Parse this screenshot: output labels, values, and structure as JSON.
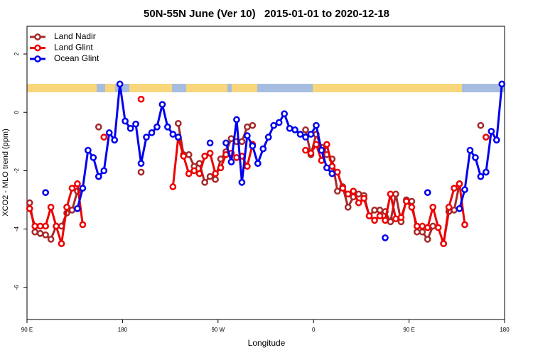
{
  "chart_data": {
    "type": "line",
    "title": "50N-55N June (Ver 10)   2015-01-01 to 2020-12-18",
    "x_label": "Longitude",
    "y_label": "XCO2 - MLO trend (ppm)",
    "x": [
      92.5,
      97.5,
      102.5,
      107.5,
      112.5,
      117.5,
      122.5,
      127.5,
      132.5,
      137.5,
      142.5,
      147.5,
      152.5,
      157.5,
      162.5,
      167.5,
      172.5,
      177.5,
      182.5,
      187.5,
      192.5,
      197.5,
      202.5,
      207.5,
      212.5,
      217.5,
      222.5,
      227.5,
      232.5,
      237.5,
      242.5,
      247.5,
      252.5,
      257.5,
      262.5,
      267.5,
      272.5,
      277.5,
      282.5,
      287.5,
      292.5,
      297.5,
      302.5,
      307.5,
      312.5,
      317.5,
      322.5,
      327.5,
      332.5,
      337.5,
      342.5,
      347.5,
      352.5,
      357.5,
      362.5,
      367.5,
      372.5,
      377.5,
      382.5,
      387.5,
      392.5,
      397.5,
      402.5,
      407.5,
      412.5,
      417.5,
      422.5,
      427.5,
      432.5,
      437.5,
      442.5,
      447.5,
      452.5,
      457.5,
      462.5,
      467.5,
      472.5,
      477.5,
      482.5,
      487.5,
      492.5,
      497.5,
      502.5,
      507.5,
      512.5,
      517.5,
      522.5,
      527.5,
      532.5,
      537.5
    ],
    "series": [
      {
        "name": "Land Nadir",
        "color": "#a52a2a",
        "values": [
          -3.1,
          -4.1,
          -4.15,
          -4.2,
          -4.35,
          -3.9,
          -3.9,
          -3.45,
          -3.35,
          -2.7,
          null,
          null,
          null,
          -0.5,
          null,
          null,
          null,
          null,
          null,
          null,
          null,
          -2.05,
          null,
          null,
          null,
          null,
          null,
          null,
          -0.38,
          -1.45,
          -1.45,
          -1.85,
          -1.75,
          -2.4,
          -2.2,
          -2.3,
          -1.6,
          -1.35,
          -0.9,
          -1.0,
          -1.0,
          -0.5,
          -0.45,
          null,
          null,
          null,
          null,
          null,
          null,
          null,
          null,
          null,
          -0.6,
          -1.45,
          -0.75,
          -1.2,
          -1.45,
          -1.6,
          -2.7,
          -2.55,
          -3.25,
          -2.9,
          -2.8,
          -2.85,
          -3.55,
          -3.35,
          -3.35,
          -3.4,
          -3.75,
          -2.8,
          -3.75,
          -3.0,
          -3.05,
          -4.1,
          -4.1,
          -4.35,
          -3.9,
          null,
          -4.5,
          -3.4,
          -3.35,
          -2.45,
          null,
          null,
          null,
          -0.45,
          null,
          null,
          null,
          null
        ]
      },
      {
        "name": "Land Glint",
        "color": "#ee0000",
        "values": [
          -3.3,
          -3.9,
          -3.9,
          -3.9,
          -3.25,
          -3.9,
          -4.5,
          -3.25,
          -2.6,
          -2.45,
          -3.85,
          null,
          null,
          null,
          -0.85,
          null,
          null,
          null,
          null,
          null,
          null,
          0.45,
          null,
          null,
          null,
          null,
          null,
          -2.55,
          -0.85,
          -1.5,
          -2.1,
          -2.0,
          -2.1,
          -1.5,
          -1.4,
          -2.1,
          -1.9,
          -1.45,
          -1.4,
          -1.55,
          -1.5,
          -1.85,
          -1.1,
          null,
          null,
          null,
          null,
          null,
          null,
          null,
          null,
          null,
          -1.3,
          -1.4,
          -1.1,
          -1.65,
          -1.1,
          -1.85,
          -2.05,
          -2.6,
          -2.8,
          -2.7,
          -3.1,
          -2.95,
          -3.55,
          -3.7,
          -3.55,
          -3.7,
          -2.8,
          -3.65,
          -3.6,
          -3.05,
          -3.25,
          -3.9,
          -3.9,
          -3.95,
          -3.25,
          -3.95,
          -4.5,
          -3.25,
          -2.6,
          -2.45,
          -3.85,
          null,
          null,
          null,
          -0.85,
          null,
          null,
          null
        ]
      },
      {
        "name": "Ocean Glint",
        "color": "#0000ee",
        "values": [
          null,
          null,
          null,
          -2.75,
          null,
          null,
          null,
          null,
          null,
          -3.3,
          -2.6,
          -1.3,
          -1.55,
          -2.2,
          -2.0,
          -0.7,
          -0.95,
          0.97,
          -0.3,
          -0.55,
          -0.4,
          -1.75,
          -0.85,
          -0.7,
          -0.5,
          0.27,
          -0.5,
          -0.75,
          -0.85,
          null,
          null,
          null,
          null,
          null,
          -1.05,
          null,
          null,
          -1.05,
          -1.7,
          -0.25,
          -2.4,
          -0.8,
          -1.15,
          -1.75,
          -1.25,
          -0.85,
          -0.45,
          -0.35,
          -0.05,
          -0.55,
          -0.6,
          -0.75,
          -0.85,
          -0.75,
          -0.45,
          -1.3,
          -1.9,
          -2.1,
          null,
          null,
          null,
          null,
          null,
          null,
          null,
          null,
          null,
          -4.3,
          null,
          null,
          null,
          null,
          null,
          null,
          null,
          -2.75,
          null,
          null,
          null,
          null,
          null,
          -3.3,
          -2.65,
          -1.3,
          -1.55,
          -2.2,
          -2.05,
          -0.65,
          -0.95,
          0.97
        ]
      }
    ],
    "xlim": [
      90,
      540
    ],
    "xticks": [
      {
        "value": 90,
        "label": "90 E"
      },
      180,
      {
        "value": 270,
        "label": "90 W"
      },
      {
        "value": 360,
        "label": "0"
      },
      {
        "value": 450,
        "label": "90 E"
      },
      {
        "value": 540,
        "label": "180"
      }
    ],
    "ylim": [
      -7.1,
      2.95
    ],
    "yticks": [
      2,
      0,
      -2,
      -4,
      -6
    ],
    "legend": "top-left"
  }
}
